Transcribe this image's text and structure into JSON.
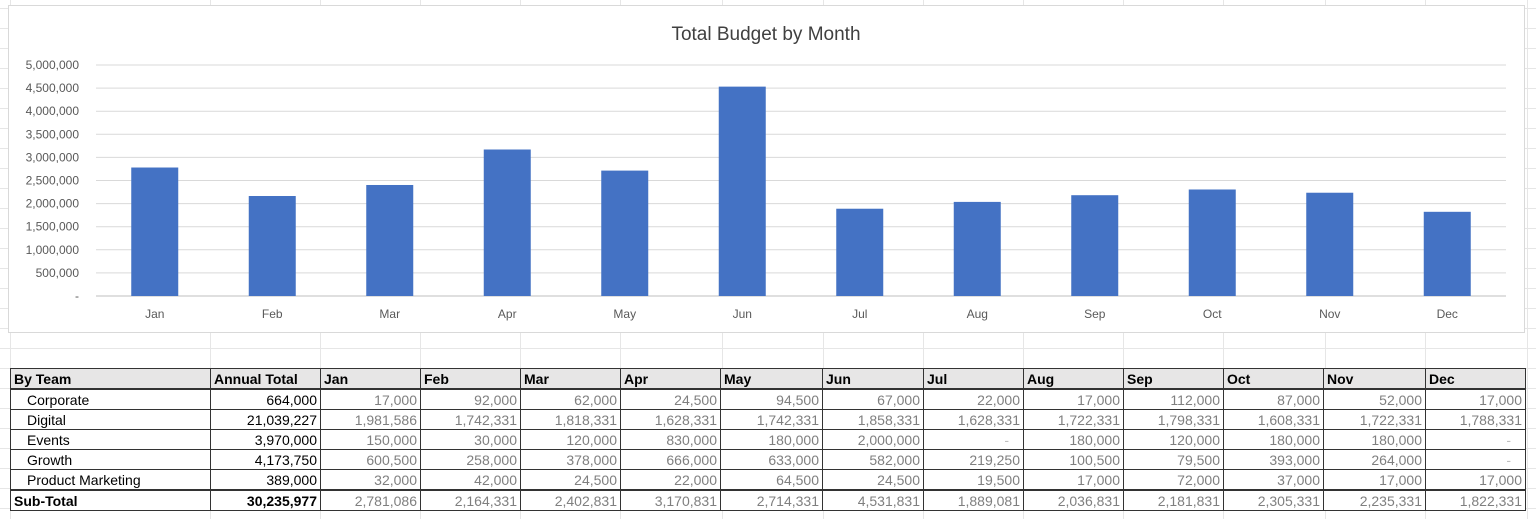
{
  "chart_data": {
    "type": "bar",
    "title": "Total Budget by Month",
    "xlabel": "",
    "ylabel": "",
    "categories": [
      "Jan",
      "Feb",
      "Mar",
      "Apr",
      "May",
      "Jun",
      "Jul",
      "Aug",
      "Sep",
      "Oct",
      "Nov",
      "Dec"
    ],
    "values": [
      2781086,
      2164331,
      2402831,
      3170831,
      2714331,
      4531831,
      1889081,
      2036831,
      2181831,
      2305331,
      2235331,
      1822331
    ],
    "ylim": [
      0,
      5000000
    ],
    "yticks": [
      "-",
      "500,000",
      "1,000,000",
      "1,500,000",
      "2,000,000",
      "2,500,000",
      "3,000,000",
      "3,500,000",
      "4,000,000",
      "4,500,000",
      "5,000,000"
    ],
    "grid": true,
    "bar_color": "#4472c4"
  },
  "table": {
    "headers": [
      "By Team",
      "Annual Total",
      "Jan",
      "Feb",
      "Mar",
      "Apr",
      "May",
      "Jun",
      "Jul",
      "Aug",
      "Sep",
      "Oct",
      "Nov",
      "Dec"
    ],
    "rows": [
      {
        "team": "Corporate",
        "total": "664,000",
        "months": [
          "17,000",
          "92,000",
          "62,000",
          "24,500",
          "94,500",
          "67,000",
          "22,000",
          "17,000",
          "112,000",
          "87,000",
          "52,000",
          "17,000"
        ]
      },
      {
        "team": "Digital",
        "total": "21,039,227",
        "months": [
          "1,981,586",
          "1,742,331",
          "1,818,331",
          "1,628,331",
          "1,742,331",
          "1,858,331",
          "1,628,331",
          "1,722,331",
          "1,798,331",
          "1,608,331",
          "1,722,331",
          "1,788,331"
        ]
      },
      {
        "team": "Events",
        "total": "3,970,000",
        "months": [
          "150,000",
          "30,000",
          "120,000",
          "830,000",
          "180,000",
          "2,000,000",
          "-",
          "180,000",
          "120,000",
          "180,000",
          "180,000",
          "-"
        ]
      },
      {
        "team": "Growth",
        "total": "4,173,750",
        "months": [
          "600,500",
          "258,000",
          "378,000",
          "666,000",
          "633,000",
          "582,000",
          "219,250",
          "100,500",
          "79,500",
          "393,000",
          "264,000",
          "-"
        ]
      },
      {
        "team": "Product Marketing",
        "total": "389,000",
        "months": [
          "32,000",
          "42,000",
          "24,500",
          "22,000",
          "64,500",
          "24,500",
          "19,500",
          "17,000",
          "72,000",
          "37,000",
          "17,000",
          "17,000"
        ]
      }
    ],
    "subtotal": {
      "team": "Sub-Total",
      "total": "30,235,977",
      "months": [
        "2,781,086",
        "2,164,331",
        "2,402,831",
        "3,170,831",
        "2,714,331",
        "4,531,831",
        "1,889,081",
        "2,036,831",
        "2,181,831",
        "2,305,331",
        "2,235,331",
        "1,822,331"
      ]
    }
  }
}
